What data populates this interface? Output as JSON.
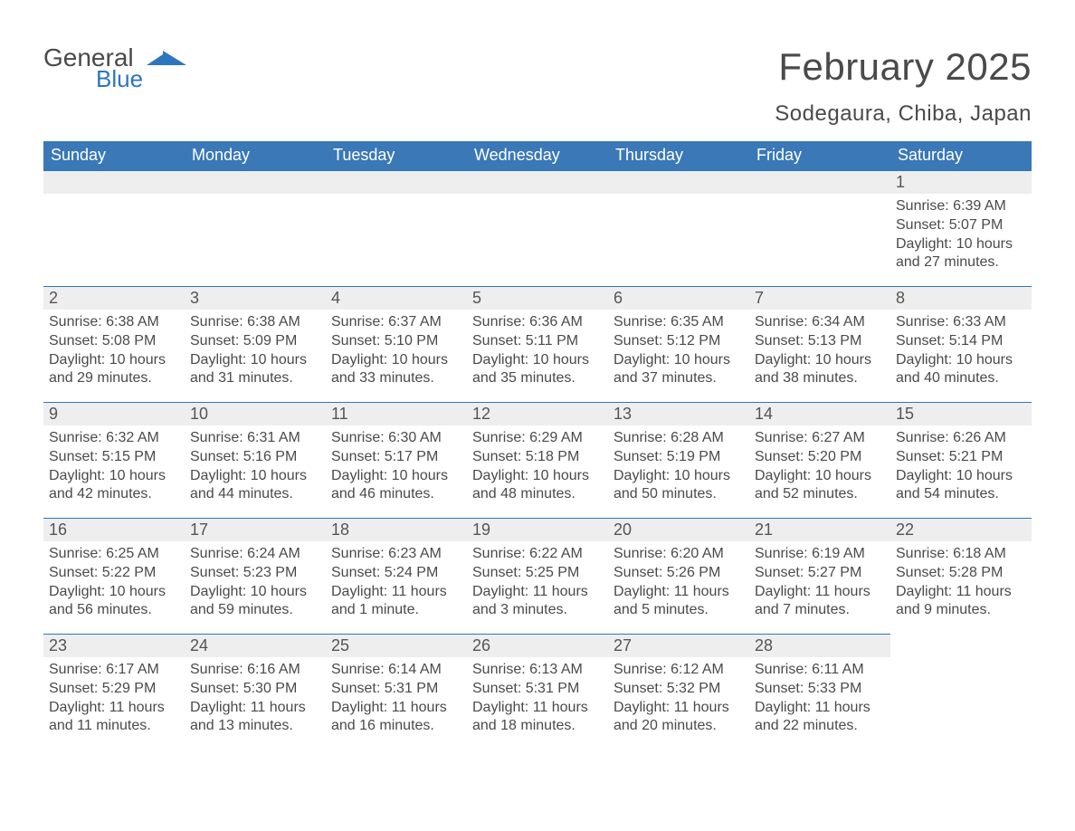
{
  "brand": {
    "name1": "General",
    "name2": "Blue",
    "mark_color": "#2d76bd"
  },
  "title": "February 2025",
  "subtitle": "Sodegaura, Chiba, Japan",
  "header_bg": "#3a78b7",
  "daynum_bg": "#eeeeee",
  "border_color": "#2d76bd",
  "text_color": "#4a4a4a",
  "weekdays": [
    "Sunday",
    "Monday",
    "Tuesday",
    "Wednesday",
    "Thursday",
    "Friday",
    "Saturday"
  ],
  "weeks": [
    [
      null,
      null,
      null,
      null,
      null,
      null,
      {
        "num": "1",
        "sunrise": "Sunrise: 6:39 AM",
        "sunset": "Sunset: 5:07 PM",
        "dl1": "Daylight: 10 hours",
        "dl2": "and 27 minutes."
      }
    ],
    [
      {
        "num": "2",
        "sunrise": "Sunrise: 6:38 AM",
        "sunset": "Sunset: 5:08 PM",
        "dl1": "Daylight: 10 hours",
        "dl2": "and 29 minutes."
      },
      {
        "num": "3",
        "sunrise": "Sunrise: 6:38 AM",
        "sunset": "Sunset: 5:09 PM",
        "dl1": "Daylight: 10 hours",
        "dl2": "and 31 minutes."
      },
      {
        "num": "4",
        "sunrise": "Sunrise: 6:37 AM",
        "sunset": "Sunset: 5:10 PM",
        "dl1": "Daylight: 10 hours",
        "dl2": "and 33 minutes."
      },
      {
        "num": "5",
        "sunrise": "Sunrise: 6:36 AM",
        "sunset": "Sunset: 5:11 PM",
        "dl1": "Daylight: 10 hours",
        "dl2": "and 35 minutes."
      },
      {
        "num": "6",
        "sunrise": "Sunrise: 6:35 AM",
        "sunset": "Sunset: 5:12 PM",
        "dl1": "Daylight: 10 hours",
        "dl2": "and 37 minutes."
      },
      {
        "num": "7",
        "sunrise": "Sunrise: 6:34 AM",
        "sunset": "Sunset: 5:13 PM",
        "dl1": "Daylight: 10 hours",
        "dl2": "and 38 minutes."
      },
      {
        "num": "8",
        "sunrise": "Sunrise: 6:33 AM",
        "sunset": "Sunset: 5:14 PM",
        "dl1": "Daylight: 10 hours",
        "dl2": "and 40 minutes."
      }
    ],
    [
      {
        "num": "9",
        "sunrise": "Sunrise: 6:32 AM",
        "sunset": "Sunset: 5:15 PM",
        "dl1": "Daylight: 10 hours",
        "dl2": "and 42 minutes."
      },
      {
        "num": "10",
        "sunrise": "Sunrise: 6:31 AM",
        "sunset": "Sunset: 5:16 PM",
        "dl1": "Daylight: 10 hours",
        "dl2": "and 44 minutes."
      },
      {
        "num": "11",
        "sunrise": "Sunrise: 6:30 AM",
        "sunset": "Sunset: 5:17 PM",
        "dl1": "Daylight: 10 hours",
        "dl2": "and 46 minutes."
      },
      {
        "num": "12",
        "sunrise": "Sunrise: 6:29 AM",
        "sunset": "Sunset: 5:18 PM",
        "dl1": "Daylight: 10 hours",
        "dl2": "and 48 minutes."
      },
      {
        "num": "13",
        "sunrise": "Sunrise: 6:28 AM",
        "sunset": "Sunset: 5:19 PM",
        "dl1": "Daylight: 10 hours",
        "dl2": "and 50 minutes."
      },
      {
        "num": "14",
        "sunrise": "Sunrise: 6:27 AM",
        "sunset": "Sunset: 5:20 PM",
        "dl1": "Daylight: 10 hours",
        "dl2": "and 52 minutes."
      },
      {
        "num": "15",
        "sunrise": "Sunrise: 6:26 AM",
        "sunset": "Sunset: 5:21 PM",
        "dl1": "Daylight: 10 hours",
        "dl2": "and 54 minutes."
      }
    ],
    [
      {
        "num": "16",
        "sunrise": "Sunrise: 6:25 AM",
        "sunset": "Sunset: 5:22 PM",
        "dl1": "Daylight: 10 hours",
        "dl2": "and 56 minutes."
      },
      {
        "num": "17",
        "sunrise": "Sunrise: 6:24 AM",
        "sunset": "Sunset: 5:23 PM",
        "dl1": "Daylight: 10 hours",
        "dl2": "and 59 minutes."
      },
      {
        "num": "18",
        "sunrise": "Sunrise: 6:23 AM",
        "sunset": "Sunset: 5:24 PM",
        "dl1": "Daylight: 11 hours",
        "dl2": "and 1 minute."
      },
      {
        "num": "19",
        "sunrise": "Sunrise: 6:22 AM",
        "sunset": "Sunset: 5:25 PM",
        "dl1": "Daylight: 11 hours",
        "dl2": "and 3 minutes."
      },
      {
        "num": "20",
        "sunrise": "Sunrise: 6:20 AM",
        "sunset": "Sunset: 5:26 PM",
        "dl1": "Daylight: 11 hours",
        "dl2": "and 5 minutes."
      },
      {
        "num": "21",
        "sunrise": "Sunrise: 6:19 AM",
        "sunset": "Sunset: 5:27 PM",
        "dl1": "Daylight: 11 hours",
        "dl2": "and 7 minutes."
      },
      {
        "num": "22",
        "sunrise": "Sunrise: 6:18 AM",
        "sunset": "Sunset: 5:28 PM",
        "dl1": "Daylight: 11 hours",
        "dl2": "and 9 minutes."
      }
    ],
    [
      {
        "num": "23",
        "sunrise": "Sunrise: 6:17 AM",
        "sunset": "Sunset: 5:29 PM",
        "dl1": "Daylight: 11 hours",
        "dl2": "and 11 minutes."
      },
      {
        "num": "24",
        "sunrise": "Sunrise: 6:16 AM",
        "sunset": "Sunset: 5:30 PM",
        "dl1": "Daylight: 11 hours",
        "dl2": "and 13 minutes."
      },
      {
        "num": "25",
        "sunrise": "Sunrise: 6:14 AM",
        "sunset": "Sunset: 5:31 PM",
        "dl1": "Daylight: 11 hours",
        "dl2": "and 16 minutes."
      },
      {
        "num": "26",
        "sunrise": "Sunrise: 6:13 AM",
        "sunset": "Sunset: 5:31 PM",
        "dl1": "Daylight: 11 hours",
        "dl2": "and 18 minutes."
      },
      {
        "num": "27",
        "sunrise": "Sunrise: 6:12 AM",
        "sunset": "Sunset: 5:32 PM",
        "dl1": "Daylight: 11 hours",
        "dl2": "and 20 minutes."
      },
      {
        "num": "28",
        "sunrise": "Sunrise: 6:11 AM",
        "sunset": "Sunset: 5:33 PM",
        "dl1": "Daylight: 11 hours",
        "dl2": "and 22 minutes."
      },
      null
    ]
  ]
}
